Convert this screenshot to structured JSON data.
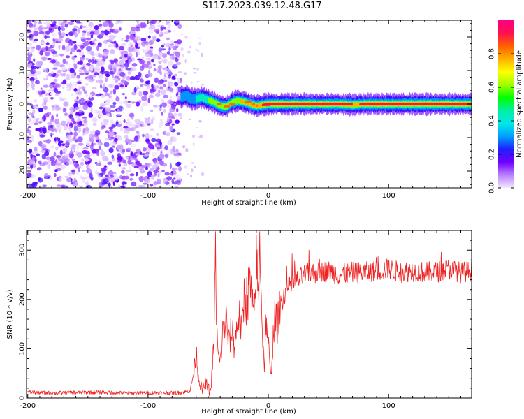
{
  "figure": {
    "title": "S117.2023.039.12.48.G17"
  },
  "chart_data": [
    {
      "type": "heatmap",
      "xlabel": "Height of straight line (km)",
      "ylabel": "Frequency (Hz)",
      "xlim": [
        -201,
        169
      ],
      "ylim": [
        -25,
        25
      ],
      "x_ticks": [
        -200,
        -100,
        0,
        100
      ],
      "y_ticks": [
        -20,
        -10,
        0,
        10,
        20
      ],
      "colorbar": {
        "label": "Normalized spectral amplitude",
        "range": [
          0,
          1
        ],
        "ticks": [
          "0.0",
          "0.2",
          "0.4",
          "0.6",
          "0.8"
        ],
        "colors": [
          "#f2e6ff",
          "#b980ff",
          "#6f00ff",
          "#2020ff",
          "#00a0ff",
          "#00e8e8",
          "#00f0a0",
          "#00ff00",
          "#a0ff00",
          "#ffff00",
          "#ffb000",
          "#ff6000",
          "#ff1050",
          "#ff0080"
        ]
      },
      "noise_region": {
        "x": [
          -201,
          -73
        ],
        "y": [
          -25,
          25
        ]
      },
      "ridge": {
        "x": [
          -73,
          -68,
          -64,
          -60,
          -55,
          -50,
          -45,
          -40,
          -35,
          -30,
          -25,
          -20,
          -15,
          -10,
          -5,
          0,
          10,
          20,
          40,
          60,
          70,
          80,
          100,
          120,
          140,
          160,
          169
        ],
        "y": [
          2.0,
          2.5,
          1.5,
          1.5,
          2.0,
          1.2,
          0.5,
          -0.5,
          -0.8,
          0.5,
          1.0,
          0.6,
          0.0,
          -0.5,
          -0.3,
          0.0,
          0.0,
          0.0,
          0.0,
          0.0,
          -0.2,
          0.0,
          0.0,
          0.0,
          0.0,
          0.0,
          0.0
        ],
        "amp": [
          0.28,
          0.32,
          0.35,
          0.38,
          0.45,
          0.55,
          0.62,
          0.62,
          0.6,
          0.65,
          0.7,
          0.75,
          0.8,
          0.85,
          0.88,
          0.9,
          0.92,
          0.95,
          0.95,
          0.93,
          0.85,
          0.9,
          0.9,
          0.88,
          0.9,
          0.92,
          0.9
        ]
      }
    },
    {
      "type": "line",
      "xlabel": "Height of straight line (km)",
      "ylabel": "SNR (10 * v/v)",
      "xlim": [
        -201,
        169
      ],
      "ylim": [
        0,
        340
      ],
      "x_ticks": [
        -200,
        -100,
        0,
        100
      ],
      "y_ticks": [
        0,
        100,
        200,
        300
      ],
      "series": [
        {
          "color": "#ee2222",
          "x": [
            -200,
            -180,
            -160,
            -140,
            -120,
            -100,
            -80,
            -70,
            -65,
            -62,
            -60,
            -58,
            -55,
            -52,
            -50,
            -48,
            -45,
            -44,
            -43,
            -42,
            -40,
            -38,
            -35,
            -33,
            -30,
            -28,
            -25,
            -22,
            -20,
            -18,
            -15,
            -12,
            -10,
            -8,
            -7,
            -6,
            -5,
            -3,
            -2,
            0,
            2,
            5,
            8,
            10,
            15,
            20,
            25,
            30,
            40,
            50,
            60,
            70,
            80,
            90,
            100,
            110,
            120,
            130,
            140,
            150,
            160,
            169
          ],
          "y": [
            12,
            10,
            11,
            12,
            10,
            11,
            10,
            12,
            15,
            50,
            95,
            40,
            15,
            30,
            20,
            10,
            120,
            335,
            150,
            90,
            70,
            130,
            160,
            110,
            140,
            100,
            175,
            130,
            210,
            200,
            230,
            150,
            270,
            200,
            325,
            260,
            130,
            60,
            170,
            110,
            40,
            160,
            150,
            190,
            220,
            230,
            240,
            250,
            255,
            258,
            250,
            255,
            255,
            258,
            262,
            255,
            258,
            255,
            256,
            262,
            255,
            258
          ]
        }
      ]
    }
  ]
}
